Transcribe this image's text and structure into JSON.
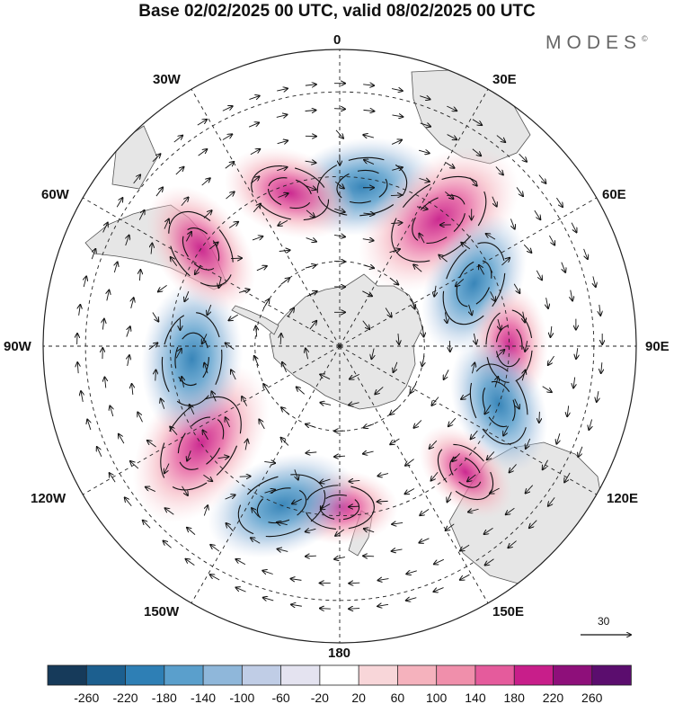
{
  "title": "Base 02/02/2025 00 UTC, valid 08/02/2025 00 UTC",
  "brand": "MODES",
  "brand_mark": "©",
  "longitude_labels": {
    "lon_0": "0",
    "lon_30e": "30E",
    "lon_60e": "60E",
    "lon_90e": "90E",
    "lon_120e": "120E",
    "lon_150e": "150E",
    "lon_180": "180",
    "lon_150w": "150W",
    "lon_120w": "120W",
    "lon_90w": "90W",
    "lon_60w": "60W",
    "lon_30w": "30W"
  },
  "reference_vector": {
    "label": "30"
  },
  "colorbar": {
    "tick_labels": [
      "-260",
      "-220",
      "-180",
      "-140",
      "-100",
      "-60",
      "-20",
      "20",
      "60",
      "100",
      "140",
      "180",
      "220",
      "260"
    ],
    "colors": [
      "#163a5a",
      "#1c5f8f",
      "#2e7fb5",
      "#5a9fcc",
      "#8fb7da",
      "#c0cde6",
      "#e4e3f0",
      "#ffffff",
      "#f8d6d9",
      "#f5b2bd",
      "#f08fab",
      "#e55b9c",
      "#c81e8a",
      "#8e0f7a",
      "#5b0d6e"
    ]
  },
  "colors": {
    "land": "#e6e6e6",
    "negative_fill": "#5a9fcc",
    "positive_fill": "#e55b9c",
    "grid": "#222222"
  },
  "anomaly_centers": [
    {
      "lon": 8,
      "lat": -52,
      "sign": -1,
      "magnitude": 140
    },
    {
      "lon": 38,
      "lat": -52,
      "sign": 1,
      "magnitude": 190
    },
    {
      "lon": 65,
      "lat": -55,
      "sign": -1,
      "magnitude": 130
    },
    {
      "lon": 90,
      "lat": -50,
      "sign": 1,
      "magnitude": 90
    },
    {
      "lon": 110,
      "lat": -50,
      "sign": -1,
      "magnitude": 120
    },
    {
      "lon": 135,
      "lat": -48,
      "sign": 1,
      "magnitude": 70
    },
    {
      "lon": 180,
      "lat": -52,
      "sign": 1,
      "magnitude": 80
    },
    {
      "lon": -160,
      "lat": -50,
      "sign": -1,
      "magnitude": 140
    },
    {
      "lon": -125,
      "lat": -50,
      "sign": 1,
      "magnitude": 180
    },
    {
      "lon": -95,
      "lat": -55,
      "sign": -1,
      "magnitude": 150
    },
    {
      "lon": -55,
      "lat": -50,
      "sign": 1,
      "magnitude": 120
    },
    {
      "lon": -18,
      "lat": -52,
      "sign": 1,
      "magnitude": 110
    }
  ]
}
